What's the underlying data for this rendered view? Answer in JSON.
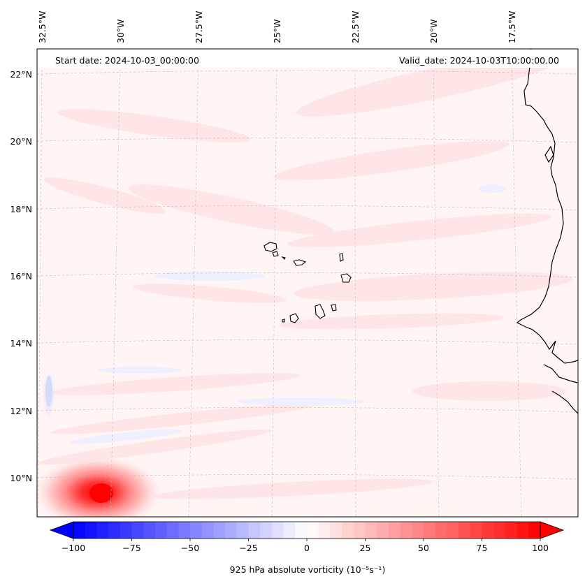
{
  "header": {
    "start_date": "Start date: 2024-10-03_00:00:00",
    "valid_date": "Valid_date: 2024-10-03T10:00:00.00"
  },
  "map": {
    "longitude_labels": [
      "32.5°W",
      "30°W",
      "27.5°W",
      "25°W",
      "22.5°W",
      "20°W",
      "17.5°W"
    ],
    "latitude_labels": [
      "22°N",
      "20°N",
      "18°N",
      "16°N",
      "14°N",
      "12°N",
      "10°N"
    ],
    "field": "925 hPa absolute vorticity",
    "vortex_peak_location": {
      "lon": -31.0,
      "lat": 9.5
    },
    "vortex_peak_value": 100
  },
  "colorbar": {
    "label": "925 hPa absolute vorticity (10⁻⁵s⁻¹)",
    "ticks": [
      "−100",
      "−75",
      "−50",
      "−25",
      "0",
      "25",
      "50",
      "75",
      "100"
    ],
    "min": -100,
    "max": 100,
    "colors": {
      "low": "#0000ff",
      "mid": "#ffffff",
      "high": "#ff0000"
    }
  }
}
